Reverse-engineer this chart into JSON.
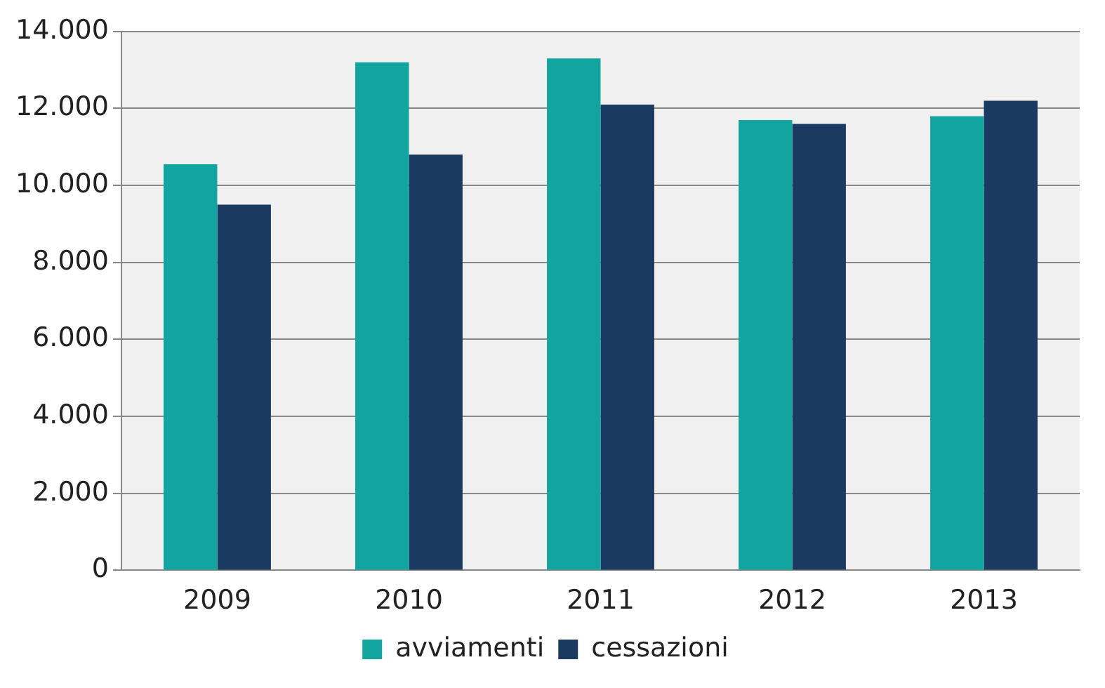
{
  "chart_data": {
    "type": "bar",
    "categories": [
      "2009",
      "2010",
      "2011",
      "2012",
      "2013"
    ],
    "series": [
      {
        "name": "avviamenti",
        "color": "#12a5a0",
        "values": [
          10550,
          13200,
          13300,
          11700,
          11800
        ]
      },
      {
        "name": "cessazioni",
        "color": "#1b3a62",
        "values": [
          9500,
          10800,
          12100,
          11600,
          12200
        ]
      }
    ],
    "ylim": [
      0,
      14000
    ],
    "yticks": [
      {
        "value": 0,
        "label": "0"
      },
      {
        "value": 2000,
        "label": "2.000"
      },
      {
        "value": 4000,
        "label": "4.000"
      },
      {
        "value": 6000,
        "label": "6.000"
      },
      {
        "value": 8000,
        "label": "8.000"
      },
      {
        "value": 10000,
        "label": "10.000"
      },
      {
        "value": 12000,
        "label": "12.000"
      },
      {
        "value": 14000,
        "label": "14.000"
      }
    ],
    "grid": "y",
    "legend": "bottom"
  }
}
